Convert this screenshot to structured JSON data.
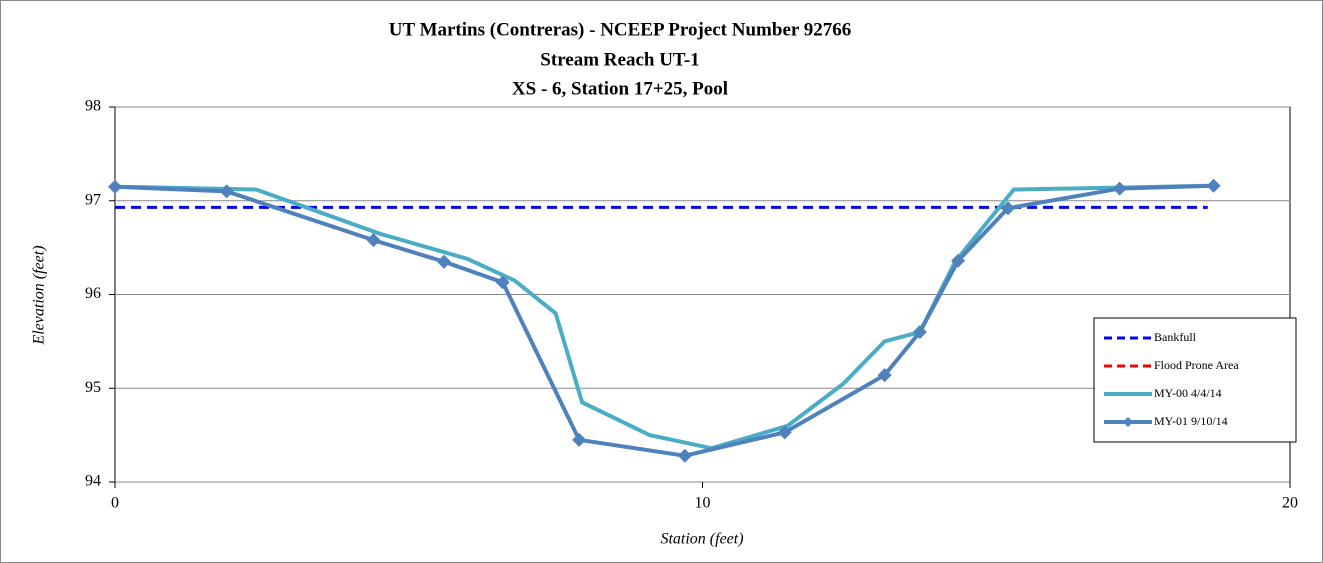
{
  "chart_data": {
    "type": "line",
    "title": [
      "UT Martins (Contreras) - NCEEP Project Number 92766",
      "Stream Reach UT-1",
      "XS - 6, Station 17+25, Pool"
    ],
    "x_label": "Station (feet)",
    "y_label": "Elevation (feet)",
    "xlim": [
      0,
      20
    ],
    "xticks": [
      0,
      10,
      20
    ],
    "ylim": [
      94,
      98
    ],
    "yticks": [
      94,
      95,
      96,
      97,
      98
    ],
    "grid": true,
    "legend": "right",
    "series": [
      {
        "name": "Bankfull",
        "color": "#0000ff",
        "dash": true,
        "x": [
          0,
          18.6
        ],
        "values": [
          96.93,
          96.93
        ]
      },
      {
        "name": "Flood Prone Area",
        "color": "#ff0000",
        "dash": true,
        "x": [],
        "values": []
      },
      {
        "name": "MY-00 4/4/14",
        "color": "#4bacc6",
        "x": [
          0,
          2.4,
          4.5,
          6.0,
          6.8,
          7.5,
          7.95,
          9.1,
          10.15,
          11.45,
          12.4,
          13.1,
          13.7,
          14.3,
          15.3,
          17.1,
          18.6
        ],
        "values": [
          97.15,
          97.12,
          96.65,
          96.38,
          96.15,
          95.8,
          94.85,
          94.5,
          94.36,
          94.6,
          95.05,
          95.5,
          95.6,
          96.35,
          97.12,
          97.14,
          97.16
        ]
      },
      {
        "name": "MY-01 9/10/14",
        "color": "#4f81bd",
        "markers": true,
        "x": [
          0,
          1.9,
          4.4,
          5.6,
          6.6,
          7.9,
          9.7,
          11.4,
          13.1,
          13.7,
          14.35,
          15.2,
          17.1,
          18.7
        ],
        "values": [
          97.15,
          97.1,
          96.58,
          96.35,
          96.13,
          94.45,
          94.28,
          94.53,
          95.14,
          95.6,
          96.36,
          96.92,
          97.13,
          97.16
        ]
      }
    ]
  }
}
